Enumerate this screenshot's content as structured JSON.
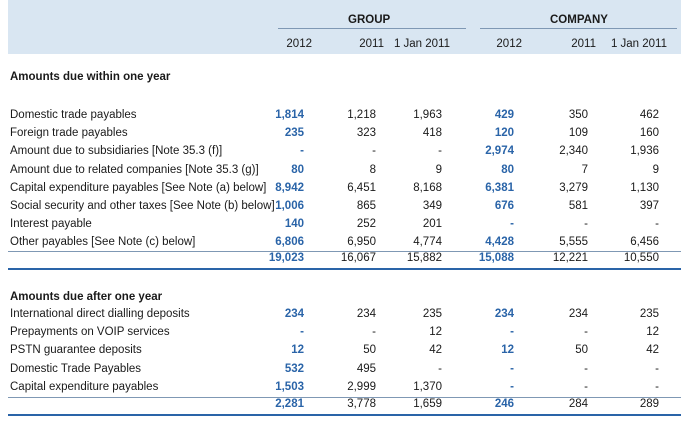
{
  "header": {
    "group_label": "GROUP",
    "company_label": "COMPANY",
    "columns": [
      "2012",
      "2011",
      "1 Jan 2011",
      "2012",
      "2011",
      "1 Jan 2011"
    ]
  },
  "within": {
    "title": "Amounts due within one year",
    "rows": [
      {
        "label": "Domestic trade payables",
        "values": [
          "1,814",
          "1,218",
          "1,963",
          "429",
          "350",
          "462"
        ]
      },
      {
        "label": "Foreign trade payables",
        "values": [
          "235",
          "323",
          "418",
          "120",
          "109",
          "160"
        ]
      },
      {
        "label": "Amount due to subsidiaries [Note 35.3 (f)]",
        "values": [
          "-",
          "-",
          "-",
          "2,974",
          "2,340",
          "1,936"
        ]
      },
      {
        "label": "Amount due to related companies [Note 35.3 (g)]",
        "values": [
          "80",
          "8",
          "9",
          "80",
          "7",
          "9"
        ]
      },
      {
        "label": "Capital expenditure payables [See Note (a) below]",
        "values": [
          "8,942",
          "6,451",
          "8,168",
          "6,381",
          "3,279",
          "1,130"
        ]
      },
      {
        "label": "Social security and other taxes [See Note (b) below]",
        "values": [
          "1,006",
          "865",
          "349",
          "676",
          "581",
          "397"
        ]
      },
      {
        "label": "Interest payable",
        "values": [
          "140",
          "252",
          "201",
          "-",
          "-",
          "-"
        ]
      },
      {
        "label": "Other payables [See Note (c) below]",
        "values": [
          "6,806",
          "6,950",
          "4,774",
          "4,428",
          "5,555",
          "6,456"
        ]
      }
    ],
    "total": [
      "19,023",
      "16,067",
      "15,882",
      "15,088",
      "12,221",
      "10,550"
    ]
  },
  "after": {
    "title": "Amounts due after one year",
    "rows": [
      {
        "label": "International direct dialling deposits",
        "values": [
          "234",
          "234",
          "235",
          "234",
          "234",
          "235"
        ]
      },
      {
        "label": "Prepayments on VOIP services",
        "values": [
          "-",
          "-",
          "12",
          "-",
          "-",
          "12"
        ]
      },
      {
        "label": "PSTN guarantee deposits",
        "values": [
          "12",
          "50",
          "42",
          "12",
          "50",
          "42"
        ]
      },
      {
        "label": "Domestic Trade Payables",
        "values": [
          "532",
          "495",
          "-",
          "-",
          "-",
          "-"
        ]
      },
      {
        "label": "Capital expenditure payables",
        "values": [
          "1,503",
          "2,999",
          "1,370",
          "-",
          "-",
          "-"
        ]
      }
    ],
    "total": [
      "2,281",
      "3,778",
      "1,659",
      "246",
      "284",
      "289"
    ]
  },
  "colors": {
    "header_bg": "#d9e6f2",
    "accent_blue": "#2a64a8",
    "rule": "#7f98b4"
  }
}
